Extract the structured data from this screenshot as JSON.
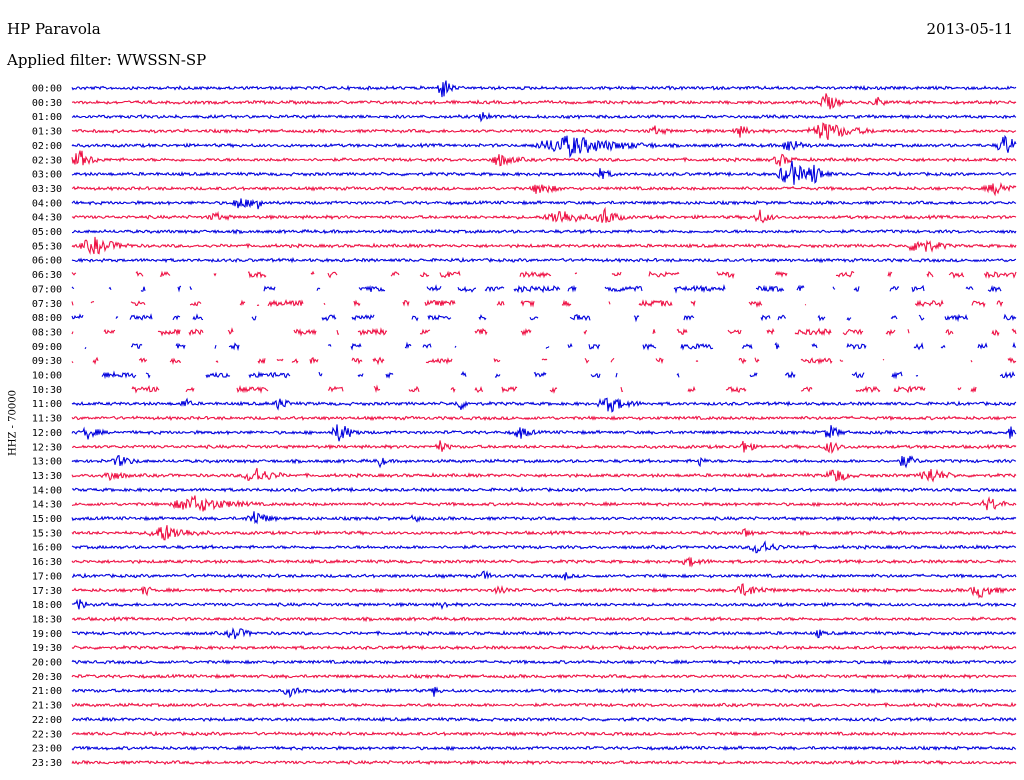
{
  "header": {
    "station": "HP Paravola",
    "date": "2013-05-11",
    "filter": "Applied filter: WWSSN-SP"
  },
  "colors": {
    "trace_a": "#0000dd",
    "trace_b": "#ee1144",
    "text": "#000000"
  },
  "chart_data": {
    "type": "line",
    "title": "HP Paravola",
    "subtitle": "Applied filter: WWSSN-SP",
    "ylabel": "HHZ - 70000",
    "xlabel": "",
    "grid": false,
    "legend": "none",
    "categories": [
      "00:00",
      "00:30",
      "01:00",
      "01:30",
      "02:00",
      "02:30",
      "03:00",
      "03:30",
      "04:00",
      "04:30",
      "05:00",
      "05:30",
      "06:00",
      "06:30",
      "07:00",
      "07:30",
      "08:00",
      "08:30",
      "09:00",
      "09:30",
      "10:00",
      "10:30",
      "11:00",
      "11:30",
      "12:00",
      "12:30",
      "13:00",
      "13:30",
      "14:00",
      "14:30",
      "15:00",
      "15:30",
      "16:00",
      "16:30",
      "17:00",
      "17:30",
      "18:00",
      "18:30",
      "19:00",
      "19:30",
      "20:00",
      "20:30",
      "21:00",
      "21:30",
      "22:00",
      "22:30",
      "23:00",
      "23:30"
    ]
  }
}
